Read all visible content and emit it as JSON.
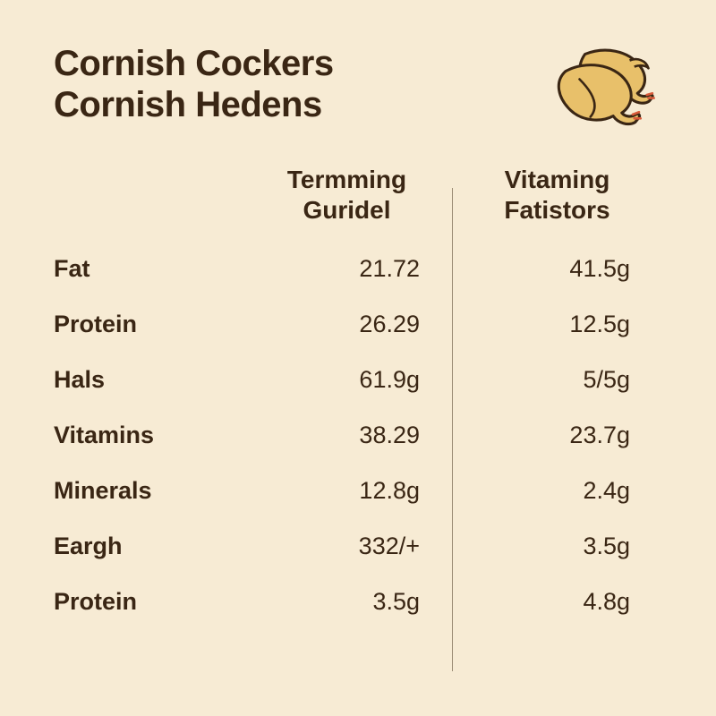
{
  "colors": {
    "background": "#f7ebd4",
    "text": "#3a2614",
    "divider": "#9a8b74",
    "chicken_body": "#e8c06a",
    "chicken_outline": "#3a2614",
    "chicken_accent": "#d85a3a"
  },
  "title_line1": "Cornish Cockers",
  "title_line2": "Cornish Hedens",
  "columns": {
    "col1_header": "",
    "col2_header_line1": "Termming",
    "col2_header_line2": "Guridel",
    "col3_header_line1": "Vitaming",
    "col3_header_line2": "Fatistors"
  },
  "rows": [
    {
      "label": "Fat",
      "v1": "21.72",
      "v2": "41.5g"
    },
    {
      "label": "Protein",
      "v1": "26.29",
      "v2": "12.5g"
    },
    {
      "label": "Hals",
      "v1": "61.9g",
      "v2": "5/5g"
    },
    {
      "label": "Vitamins",
      "v1": "38.29",
      "v2": "23.7g"
    },
    {
      "label": "Minerals",
      "v1": "12.8g",
      "v2": "2.4g"
    },
    {
      "label": "Eargh",
      "v1": "332/+",
      "v2": "3.5g"
    },
    {
      "label": "Protein",
      "v1": "3.5g",
      "v2": "4.8g"
    }
  ],
  "typography": {
    "title_fontsize": 40,
    "header_fontsize": 28,
    "row_fontsize": 27
  }
}
